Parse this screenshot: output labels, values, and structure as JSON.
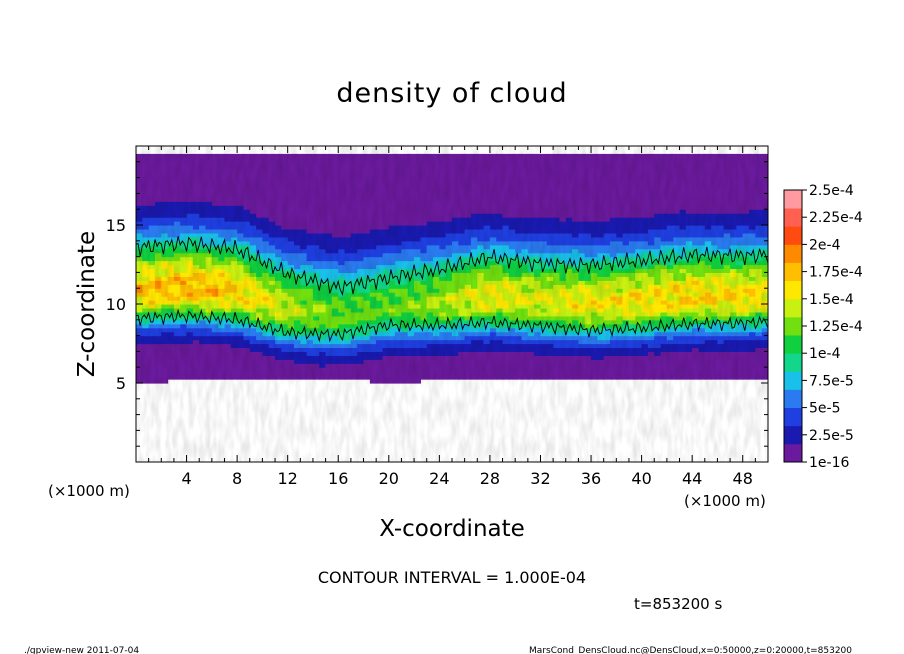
{
  "chart_data": {
    "type": "heatmap",
    "title": "density of cloud",
    "xlabel": "X-coordinate",
    "ylabel": "Z-coordinate",
    "x_unit": "(×1000 m)",
    "z_unit": "(×1000 m)",
    "xlim": [
      0,
      50
    ],
    "ylim": [
      0,
      20
    ],
    "x_ticks": [
      "4",
      "8",
      "12",
      "16",
      "20",
      "24",
      "28",
      "32",
      "36",
      "40",
      "44",
      "48"
    ],
    "y_ticks": [
      "5",
      "10",
      "15"
    ],
    "colorbar": {
      "labels": [
        "1e-16",
        "2.5e-5",
        "5e-5",
        "7.5e-5",
        "1e-4",
        "1.25e-4",
        "1.5e-4",
        "1.75e-4",
        "2e-4",
        "2.25e-4",
        "2.5e-4"
      ],
      "colors": [
        "#6a1a9c",
        "#1a1ab0",
        "#1f3fe0",
        "#2a7bf0",
        "#19c0e8",
        "#12d68a",
        "#10d040",
        "#70e010",
        "#c8f010",
        "#ffe800",
        "#ffbf00",
        "#ff8a00",
        "#ff4a10",
        "#ff6050",
        "#ff9aa0"
      ]
    },
    "contour_interval": "CONTOUR INTERVAL = 1.000E-04",
    "time": "t=853200 s",
    "cloud_profile": {
      "x": [
        0,
        4,
        8,
        12,
        16,
        20,
        24,
        28,
        32,
        36,
        40,
        44,
        48,
        50
      ],
      "base_z": [
        5.0,
        5.2,
        5.2,
        5.3,
        5.3,
        5.0,
        5.2,
        5.2,
        5.2,
        5.2,
        5.3,
        5.2,
        5.3,
        5.2
      ],
      "top_z": [
        19.5,
        19.5,
        19.5,
        19.5,
        19.5,
        19.5,
        19.5,
        19.5,
        19.5,
        19.5,
        19.5,
        19.5,
        19.5,
        19.5
      ],
      "peak_z": [
        10.8,
        11.0,
        10.7,
        9.6,
        9.2,
        9.8,
        10.0,
        10.4,
        10.1,
        9.9,
        10.1,
        10.4,
        10.4,
        10.5
      ],
      "peak_value": [
        0.000182,
        0.000188,
        0.00018,
        0.00015,
        0.00013,
        0.00013,
        0.000145,
        0.000166,
        0.000158,
        0.000166,
        0.000172,
        0.000176,
        0.000172,
        0.00017
      ]
    }
  },
  "footer": {
    "left": "./gpview-new   2011-07-04",
    "right": "MarsCond_DensCloud.nc@DensCloud,x=0:50000,z=0:20000,t=853200"
  }
}
